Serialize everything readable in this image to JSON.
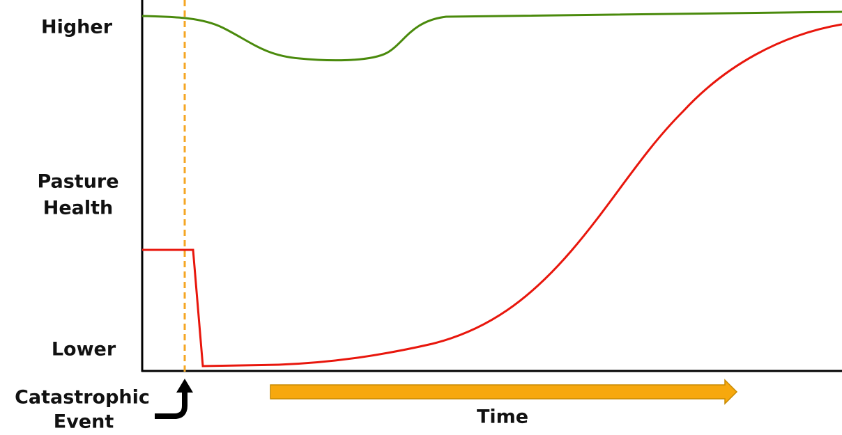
{
  "y_axis": {
    "top_label": "Higher",
    "label_lines": [
      "Pasture",
      "Health"
    ],
    "bottom_label": "Lower"
  },
  "event": {
    "label_lines": [
      "Catastrophic",
      "Event"
    ]
  },
  "x_axis": {
    "label": "Time"
  }
}
